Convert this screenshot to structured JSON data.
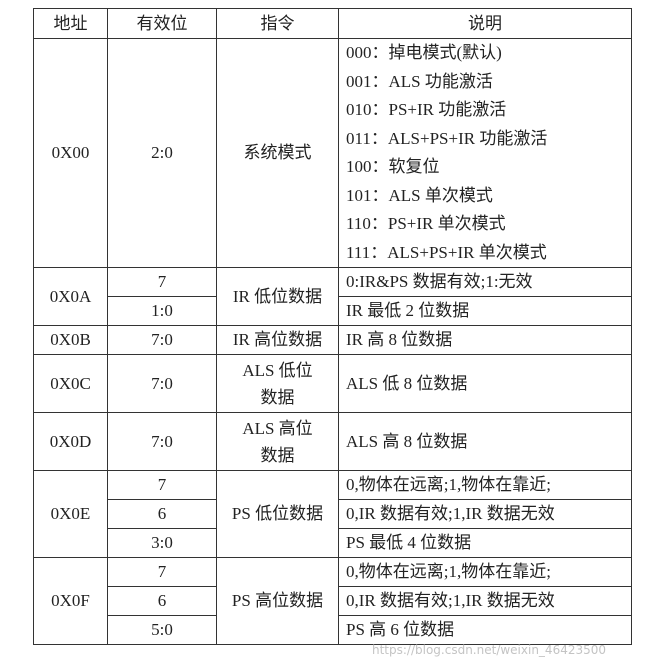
{
  "headers": [
    "地址",
    "有效位",
    "指令",
    "说明"
  ],
  "rows": {
    "r00": {
      "addr": "0X00",
      "bits": "2:0",
      "cmd": "系统模式",
      "desc": [
        "000：掉电模式(默认)",
        "001：ALS 功能激活",
        "010：PS+IR 功能激活",
        "011：ALS+PS+IR 功能激活",
        "100：软复位",
        "101：ALS 单次模式",
        "110：PS+IR 单次模式",
        "111：ALS+PS+IR 单次模式"
      ]
    },
    "r0A": {
      "addr": "0X0A",
      "cmd": "IR 低位数据",
      "sub": [
        {
          "bits": "7",
          "desc": "0:IR&PS 数据有效;1:无效"
        },
        {
          "bits": "1:0",
          "desc": "IR 最低 2 位数据"
        }
      ]
    },
    "r0B": {
      "addr": "0X0B",
      "bits": "7:0",
      "cmd": "IR 高位数据",
      "desc": "IR 高 8 位数据"
    },
    "r0C": {
      "addr": "0X0C",
      "bits": "7:0",
      "cmd": "ALS 低位数据",
      "desc": "ALS 低 8 位数据"
    },
    "r0D": {
      "addr": "0X0D",
      "bits": "7:0",
      "cmd": "ALS 高位数据",
      "desc": "ALS 高 8 位数据"
    },
    "r0E": {
      "addr": "0X0E",
      "cmd": "PS 低位数据",
      "sub": [
        {
          "bits": "7",
          "desc": "0,物体在远离;1,物体在靠近;"
        },
        {
          "bits": "6",
          "desc": "0,IR 数据有效;1,IR 数据无效"
        },
        {
          "bits": "3:0",
          "desc": "PS 最低 4 位数据"
        }
      ]
    },
    "r0F": {
      "addr": "0X0F",
      "cmd": "PS 高位数据",
      "sub": [
        {
          "bits": "7",
          "desc": "0,物体在远离;1,物体在靠近;"
        },
        {
          "bits": "6",
          "desc": "0,IR 数据有效;1,IR 数据无效"
        },
        {
          "bits": "5:0",
          "desc": "PS 高 6 位数据"
        }
      ]
    }
  },
  "watermark": "https://blog.csdn.net/weixin_46423500"
}
